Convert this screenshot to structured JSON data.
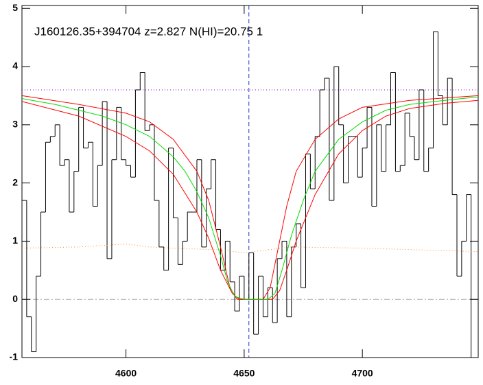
{
  "chart_data": {
    "type": "line",
    "annotation": "J160126.35+394704 z=2.827 N(HI)=20.75 1",
    "xlim": [
      4556,
      4749
    ],
    "ylim": [
      -1,
      5.05
    ],
    "xticks": [
      4600,
      4650,
      4700
    ],
    "yticks": [
      -1,
      0,
      1,
      2,
      3,
      4,
      5
    ],
    "series": [
      {
        "style": "step",
        "color": "#000000",
        "bin_width": 2,
        "x": [
          4557,
          4559,
          4561,
          4563,
          4565,
          4567,
          4569,
          4571,
          4573,
          4575,
          4577,
          4579,
          4581,
          4583,
          4585,
          4587,
          4589,
          4591,
          4593,
          4595,
          4597,
          4599,
          4601,
          4603,
          4605,
          4607,
          4609,
          4611,
          4613,
          4615,
          4617,
          4619,
          4621,
          4623,
          4625,
          4627,
          4629,
          4631,
          4633,
          4635,
          4637,
          4639,
          4641,
          4643,
          4645,
          4647,
          4649,
          4651,
          4653,
          4655,
          4657,
          4659,
          4661,
          4663,
          4665,
          4667,
          4669,
          4671,
          4673,
          4675,
          4677,
          4679,
          4681,
          4683,
          4685,
          4687,
          4689,
          4691,
          4693,
          4695,
          4697,
          4699,
          4701,
          4703,
          4705,
          4707,
          4709,
          4711,
          4713,
          4715,
          4717,
          4719,
          4721,
          4723,
          4725,
          4727,
          4729,
          4731,
          4733,
          4735,
          4737,
          4739,
          4741,
          4743,
          4745,
          4747
        ],
        "values": [
          1.7,
          -0.3,
          -0.9,
          0.4,
          1.5,
          2.7,
          2.8,
          3.0,
          2.3,
          2.4,
          1.5,
          2.2,
          3.3,
          2.6,
          2.7,
          1.6,
          2.3,
          3.4,
          0.7,
          2.4,
          3.3,
          2.4,
          2.3,
          2.1,
          3.6,
          3.9,
          2.9,
          3.0,
          1.7,
          0.9,
          0.5,
          2.6,
          1.4,
          0.6,
          1.0,
          1.5,
          1.5,
          2.4,
          0.9,
          1.9,
          2.4,
          1.2,
          0.5,
          1.0,
          0.3,
          -0.2,
          0.4,
          0.0,
          0.8,
          -0.6,
          0.4,
          -0.3,
          0.2,
          -0.4,
          0.7,
          1.0,
          -0.3,
          0.9,
          1.3,
          0.2,
          2.5,
          1.9,
          2.8,
          3.6,
          3.8,
          1.7,
          4.0,
          3.0,
          2.0,
          2.8,
          2.8,
          2.1,
          2.6,
          3.3,
          1.6,
          3.0,
          2.2,
          3.0,
          3.9,
          2.2,
          2.3,
          3.2,
          2.8,
          2.4,
          3.6,
          2.2,
          2.6,
          4.6,
          3.5,
          3.0,
          3.8,
          1.8,
          0.4,
          1.0,
          1.8,
          -1.0
        ]
      },
      {
        "style": "dotted",
        "color": "#ff8c2a",
        "x": [
          4556,
          4580,
          4600,
          4610,
          4620,
          4640,
          4650,
          4660,
          4670,
          4700,
          4749
        ],
        "values": [
          0.88,
          0.9,
          0.95,
          0.9,
          0.88,
          0.85,
          0.8,
          0.85,
          0.9,
          0.88,
          0.82
        ]
      },
      {
        "style": "solid",
        "color": "#ff0000",
        "x": [
          4556,
          4580,
          4600,
          4610,
          4620,
          4630,
          4635,
          4640,
          4644,
          4647,
          4658,
          4661,
          4664,
          4668,
          4672,
          4680,
          4690,
          4700,
          4720,
          4749
        ],
        "values": [
          3.5,
          3.35,
          3.2,
          3.05,
          2.75,
          2.2,
          1.7,
          0.9,
          0.2,
          0,
          0,
          0.2,
          0.8,
          1.6,
          2.2,
          2.75,
          3.1,
          3.3,
          3.42,
          3.5
        ]
      },
      {
        "style": "solid",
        "color": "#ff0000",
        "x": [
          4556,
          4580,
          4600,
          4610,
          4620,
          4630,
          4635,
          4640,
          4645,
          4648,
          4662,
          4665,
          4668,
          4672,
          4680,
          4690,
          4700,
          4710,
          4720,
          4735,
          4749
        ],
        "values": [
          3.4,
          3.15,
          2.8,
          2.55,
          2.15,
          1.5,
          1.05,
          0.5,
          0.1,
          0,
          0,
          0.15,
          0.5,
          1.0,
          1.8,
          2.5,
          2.9,
          3.15,
          3.28,
          3.37,
          3.42
        ]
      },
      {
        "style": "solid",
        "color": "#00dd00",
        "x": [
          4556,
          4570,
          4580,
          4590,
          4600,
          4610,
          4620,
          4625,
          4630,
          4635,
          4640,
          4643,
          4646,
          4650,
          4660,
          4663,
          4666,
          4670,
          4675,
          4680,
          4690,
          4700,
          4710,
          4720,
          4735,
          4749
        ],
        "values": [
          3.45,
          3.35,
          3.25,
          3.15,
          3.0,
          2.8,
          2.45,
          2.2,
          1.85,
          1.4,
          0.75,
          0.3,
          0.05,
          0,
          0,
          0.1,
          0.5,
          1.1,
          1.7,
          2.2,
          2.75,
          3.05,
          3.25,
          3.35,
          3.42,
          3.48
        ]
      }
    ],
    "hlines": [
      {
        "value": 3.6,
        "color": "#8800cc",
        "dash": "1 3"
      },
      {
        "value": 0,
        "color": "#aaaaaa",
        "dash": "8 3 2 3"
      }
    ],
    "vlines": [
      {
        "value": 4652,
        "color": "#2233cc",
        "dash": "6 4"
      }
    ]
  }
}
